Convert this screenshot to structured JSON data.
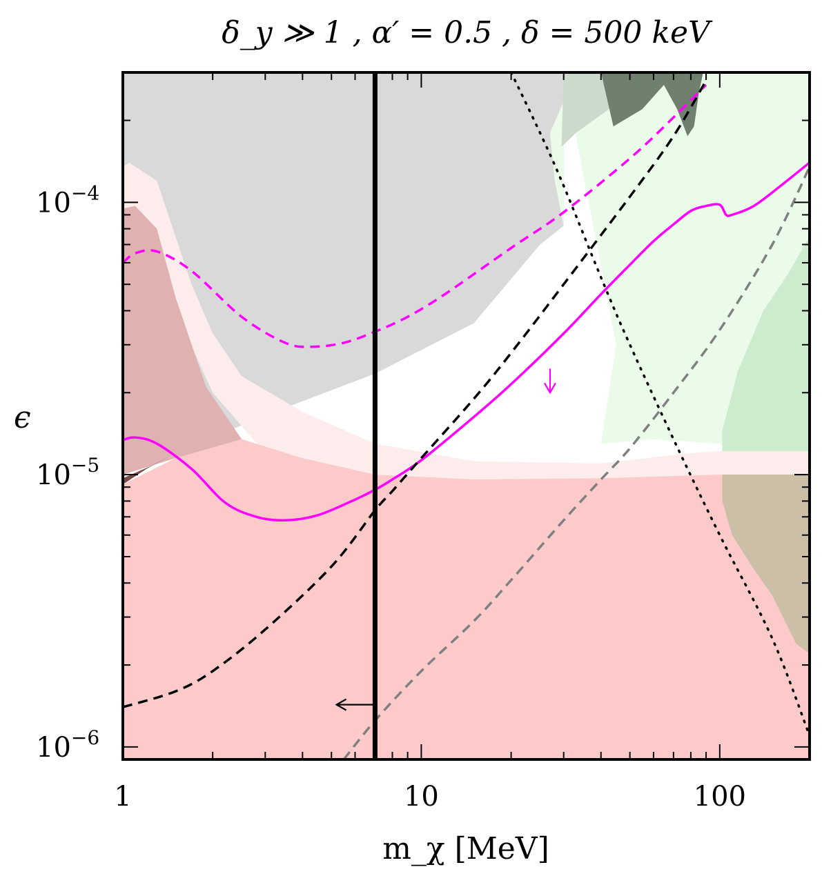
{
  "chart_data": {
    "type": "line",
    "title": "δ_y ≫ 1 ,  α′ = 0.5 ,  δ = 500 keV",
    "xlabel": "m_χ [MeV]",
    "ylabel": "ϵ",
    "xscale": "log",
    "yscale": "log",
    "xlim": [
      1,
      200
    ],
    "ylim": [
      9e-07,
      0.0003
    ],
    "xticks": [
      {
        "value": 1,
        "label": "1"
      },
      {
        "value": 10,
        "label": "10"
      },
      {
        "value": 100,
        "label": "100"
      }
    ],
    "yticks": [
      {
        "value": 1e-06,
        "base": "10",
        "exp": "−6"
      },
      {
        "value": 1e-05,
        "base": "10",
        "exp": "−5"
      },
      {
        "value": 0.0001,
        "base": "10",
        "exp": "−4"
      }
    ],
    "regions": [
      {
        "name": "gray-excluded-region",
        "color": "#d9d9d9",
        "opacity": 1,
        "points": [
          [
            1,
            0.0003
          ],
          [
            1,
            1e-05
          ],
          [
            1.5,
            1.2e-05
          ],
          [
            3,
            1.65e-05
          ],
          [
            7,
            2.35e-05
          ],
          [
            15,
            3.6e-05
          ],
          [
            25,
            7e-05
          ],
          [
            30,
            8.2e-05
          ],
          [
            30,
            0.0003
          ]
        ]
      },
      {
        "name": "light-green-region",
        "color": "#eafbea",
        "opacity": 1,
        "points": [
          [
            30,
            0.0003
          ],
          [
            30,
            8.2e-05
          ],
          [
            28,
            0.00012
          ],
          [
            27,
            0.00018
          ],
          [
            33,
            0.0003
          ],
          [
            200,
            0.0003
          ],
          [
            200,
            1e-05
          ],
          [
            150,
            1e-05
          ],
          [
            100,
            1.3e-05
          ],
          [
            60,
            1.35e-05
          ],
          [
            40,
            1.3e-05
          ],
          [
            45,
            3e-05
          ]
        ]
      },
      {
        "name": "green-region",
        "color": "#cdeccd",
        "opacity": 1,
        "points": [
          [
            200,
            7.5e-05
          ],
          [
            170,
            5.5e-05
          ],
          [
            140,
            4e-05
          ],
          [
            115,
            2.4e-05
          ],
          [
            102,
            1.45e-05
          ],
          [
            102,
            1e-05
          ],
          [
            200,
            1e-05
          ]
        ]
      },
      {
        "name": "sage-region",
        "color": "#ccdacc",
        "opacity": 1,
        "points": [
          [
            30,
            0.0003
          ],
          [
            29.5,
            0.00016
          ],
          [
            33,
            0.00018
          ],
          [
            45,
            0.00023
          ],
          [
            70,
            0.0003
          ]
        ]
      },
      {
        "name": "dark-green-region",
        "color": "#6f806f",
        "opacity": 1,
        "points": [
          [
            40,
            0.0003
          ],
          [
            44,
            0.00019
          ],
          [
            55,
            0.00022
          ],
          [
            65,
            0.00027
          ],
          [
            72,
            0.00022
          ],
          [
            78,
            0.000175
          ],
          [
            82,
            0.00019
          ],
          [
            85,
            0.00025
          ],
          [
            88,
            0.0003
          ]
        ]
      },
      {
        "name": "light-pink-band",
        "color": "#fdecec",
        "opacity": 1,
        "points": [
          [
            1,
            0.000135
          ],
          [
            1.05,
            0.00014
          ],
          [
            1.3,
            0.00012
          ],
          [
            1.7,
            5e-05
          ],
          [
            2,
            3.3e-05
          ],
          [
            2.5,
            2.3e-05
          ],
          [
            4,
            1.7e-05
          ],
          [
            7,
            1.3e-05
          ],
          [
            15,
            1.12e-05
          ],
          [
            40,
            1.1e-05
          ],
          [
            80,
            1.2e-05
          ],
          [
            100,
            1.22e-05
          ],
          [
            200,
            1.22e-05
          ],
          [
            200,
            1e-05
          ],
          [
            100,
            1e-05
          ],
          [
            40,
            9.1e-06
          ],
          [
            15,
            8.9e-06
          ],
          [
            5,
            9.1e-06
          ],
          [
            3,
            1.2e-05
          ],
          [
            2,
            2e-05
          ],
          [
            1.5,
            4e-05
          ],
          [
            1,
            1e-05
          ]
        ]
      },
      {
        "name": "dark-pink-region",
        "color": "#e0b1b1",
        "opacity": 1,
        "points": [
          [
            1,
            9.5e-05
          ],
          [
            1.1,
            9.7e-05
          ],
          [
            1.3,
            8e-05
          ],
          [
            1.5,
            4.5e-05
          ],
          [
            1.9,
            2.1e-05
          ],
          [
            2.5,
            1.35e-05
          ],
          [
            2,
            1.25e-05
          ],
          [
            1.5,
            1.15e-05
          ],
          [
            1,
            1e-05
          ]
        ]
      },
      {
        "name": "dark-red-sliver",
        "color": "#7a4a4a",
        "opacity": 1,
        "points": [
          [
            1,
            9.2e-06
          ],
          [
            1.2,
            1.05e-05
          ],
          [
            1.45,
            1.18e-05
          ],
          [
            1.25,
            1.08e-05
          ],
          [
            1,
            9.7e-06
          ]
        ]
      },
      {
        "name": "red-excluded-region",
        "color": "#fdcaca",
        "opacity": 1,
        "points": [
          [
            1,
            9e-07
          ],
          [
            1,
            9.2e-06
          ],
          [
            1.5,
            1.15e-05
          ],
          [
            2.5,
            1.35e-05
          ],
          [
            4,
            1.15e-05
          ],
          [
            7,
            1e-05
          ],
          [
            15,
            9.6e-06
          ],
          [
            40,
            9.7e-06
          ],
          [
            100,
            1e-05
          ],
          [
            200,
            1e-05
          ],
          [
            200,
            9e-07
          ]
        ]
      },
      {
        "name": "olive-overlap-region",
        "color": "#cbbfa8",
        "opacity": 1,
        "points": [
          [
            102,
            1e-05
          ],
          [
            102,
            8e-06
          ],
          [
            110,
            6e-06
          ],
          [
            130,
            4.5e-06
          ],
          [
            150,
            3.6e-06
          ],
          [
            180,
            2.4e-06
          ],
          [
            200,
            2.2e-06
          ],
          [
            200,
            1e-05
          ]
        ]
      }
    ],
    "series": [
      {
        "name": "magenta-solid-line",
        "color": "#ff00ff",
        "dash": "none",
        "width": 3.5,
        "x": [
          1,
          1.1,
          1.3,
          1.7,
          2.2,
          2.8,
          3.5,
          4.5,
          6,
          7,
          8,
          10,
          15,
          20,
          30,
          40,
          50,
          60,
          70,
          80,
          90,
          100,
          105,
          110,
          130,
          160,
          200
        ],
        "y": [
          1.34e-05,
          1.37e-05,
          1.3e-05,
          1.05e-05,
          7.9e-06,
          7e-06,
          6.8e-06,
          7.1e-06,
          8.1e-06,
          8.8e-06,
          9.6e-06,
          1.13e-05,
          1.63e-05,
          2.15e-05,
          3.3e-05,
          4.6e-05,
          5.9e-05,
          7.2e-05,
          8.3e-05,
          9.3e-05,
          9.7e-05,
          9.8e-05,
          9e-05,
          9e-05,
          9.7e-05,
          0.000115,
          0.00014
        ]
      },
      {
        "name": "magenta-dashed-line",
        "color": "#ff00ff",
        "dash": "14 9",
        "width": 3.5,
        "x": [
          1,
          1.1,
          1.3,
          1.7,
          2.5,
          3.5,
          4.3,
          5.5,
          7,
          9,
          12,
          20,
          30,
          50,
          70,
          90
        ],
        "y": [
          6e-05,
          6.5e-05,
          6.6e-05,
          5.6e-05,
          3.8e-05,
          3.05e-05,
          2.95e-05,
          3.05e-05,
          3.35e-05,
          3.8e-05,
          4.6e-05,
          6.8e-05,
          9.2e-05,
          0.000145,
          0.000205,
          0.00027
        ]
      },
      {
        "name": "black-dashed-line",
        "color": "#000000",
        "dash": "14 9",
        "width": 3.5,
        "x": [
          1,
          1.5,
          2,
          3,
          5,
          7,
          8,
          10,
          15,
          20,
          30,
          50,
          70,
          90
        ],
        "y": [
          1.4e-06,
          1.6e-06,
          1.9e-06,
          2.7e-06,
          4.6e-06,
          7.4e-06,
          8.7e-06,
          1.15e-05,
          1.9e-05,
          2.8e-05,
          5e-05,
          0.000105,
          0.000175,
          0.00028
        ]
      },
      {
        "name": "gray-dashed-line",
        "color": "#808080",
        "dash": "14 9",
        "width": 3.5,
        "x": [
          5.5,
          7,
          10,
          15,
          20,
          30,
          40,
          50,
          70,
          100,
          150,
          200
        ],
        "y": [
          9e-07,
          1.25e-06,
          1.9e-06,
          2.9e-06,
          4.1e-06,
          6.8e-06,
          9.6e-06,
          1.25e-05,
          2e-05,
          3.4e-05,
          7e-05,
          0.000135
        ]
      },
      {
        "name": "black-dotted-line",
        "color": "#000000",
        "dash": "2 10",
        "width": 3.5,
        "x": [
          20,
          25,
          30,
          40,
          50,
          70,
          100,
          150,
          200
        ],
        "y": [
          0.0003,
          0.00018,
          0.000115,
          5.3e-05,
          3e-05,
          1.35e-05,
          6e-06,
          2.5e-06,
          1.1e-06
        ]
      },
      {
        "name": "black-vertical-line",
        "color": "#000000",
        "dash": "none",
        "width": 7,
        "x": [
          7,
          7
        ],
        "y": [
          9e-07,
          0.0003
        ]
      }
    ],
    "arrows": [
      {
        "name": "magenta-down-arrow",
        "color": "#ff00ff",
        "direction": "down",
        "x": 27,
        "y_from": 2.45e-05,
        "y_to": 2e-05
      },
      {
        "name": "black-left-arrow",
        "color": "#000000",
        "direction": "left",
        "y": 1.43e-06,
        "x_from": 6.9,
        "x_to": 5.2
      }
    ]
  }
}
